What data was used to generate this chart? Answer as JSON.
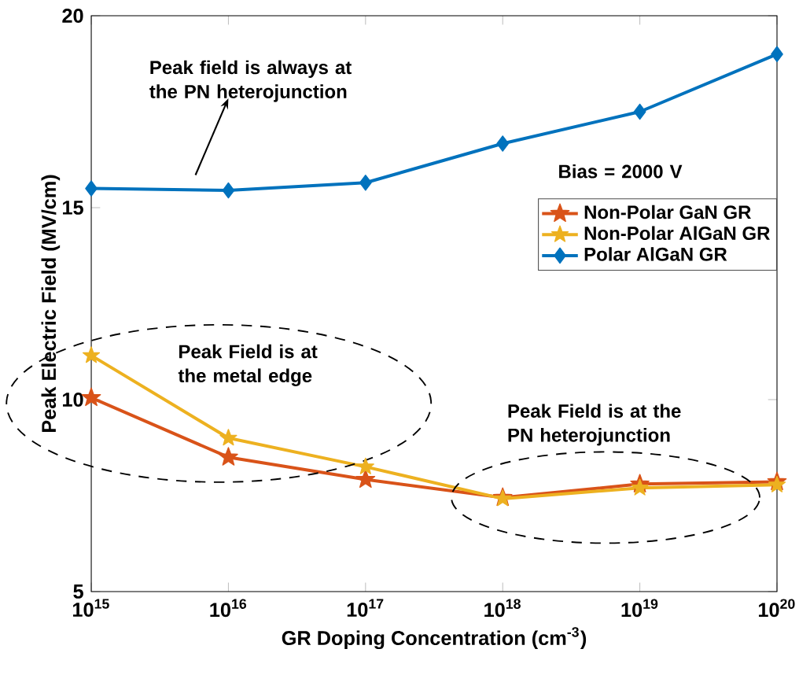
{
  "chart_data": {
    "type": "line",
    "xlabel": "GR Doping Concentration (cm$^{-3}$)",
    "ylabel": "Peak Electric Field (MV/cm)",
    "x": [
      1000000000000000.0,
      1e+16,
      1e+17,
      1e+18,
      1e+19,
      1e+20
    ],
    "series": [
      {
        "name": "Non-Polar GaN GR",
        "color": "#d95319",
        "marker": "star",
        "values": [
          10.05,
          8.5,
          7.92,
          7.45,
          7.8,
          7.86
        ]
      },
      {
        "name": "Non-Polar AlGaN GR",
        "color": "#edb120",
        "marker": "star",
        "values": [
          11.15,
          9.0,
          8.25,
          7.42,
          7.7,
          7.78
        ]
      },
      {
        "name": "Polar AlGaN GR",
        "color": "#0072bd",
        "marker": "diamond",
        "values": [
          15.5,
          15.45,
          15.65,
          16.67,
          17.5,
          19.0
        ]
      }
    ],
    "log": "x",
    "xlim": [
      1000000000000000.0,
      1e+20
    ],
    "xticks": [
      {
        "value": 1000000000000000.0,
        "label": "10$^{15}$"
      },
      {
        "value": 1e+16,
        "label": "10$^{16}$"
      },
      {
        "value": 1e+17,
        "label": "10$^{17}$"
      },
      {
        "value": 1e+18,
        "label": "10$^{18}$"
      },
      {
        "value": 1e+19,
        "label": "10$^{19}$"
      },
      {
        "value": 1e+20,
        "label": "10$^{20}$"
      }
    ],
    "ylim": [
      5,
      20
    ],
    "yticks": [
      5,
      10,
      15,
      20
    ],
    "legend": "right",
    "grid": false,
    "line_style": "solid",
    "annotations": [
      "Peak field is always at the PN heterojunction",
      "Bias = 2000 V",
      "Peak Field is at the metal edge",
      "Peak Field is at the PN heterojunction"
    ]
  }
}
